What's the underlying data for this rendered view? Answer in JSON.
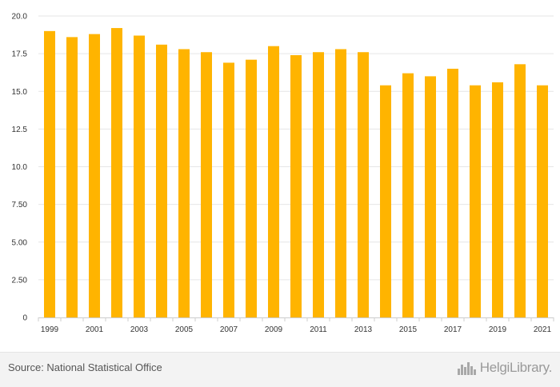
{
  "chart_data": {
    "type": "bar",
    "categories": [
      "1999",
      "2000",
      "2001",
      "2002",
      "2003",
      "2004",
      "2005",
      "2006",
      "2007",
      "2008",
      "2009",
      "2010",
      "2011",
      "2012",
      "2013",
      "2014",
      "2015",
      "2016",
      "2017",
      "2018",
      "2019",
      "2020",
      "2021"
    ],
    "values": [
      19.0,
      18.6,
      18.8,
      19.2,
      18.7,
      18.1,
      17.8,
      17.6,
      16.9,
      17.1,
      18.0,
      17.4,
      17.6,
      17.8,
      17.6,
      15.4,
      16.2,
      16.0,
      16.5,
      15.4,
      15.6,
      16.8,
      15.4
    ],
    "x_tick_labels": [
      "1999",
      "2001",
      "2003",
      "2005",
      "2007",
      "2009",
      "2011",
      "2013",
      "2015",
      "2017",
      "2019",
      "2021"
    ],
    "y_ticks": [
      "0",
      "2.50",
      "5.00",
      "7.50",
      "10.0",
      "12.5",
      "15.0",
      "17.5",
      "20.0"
    ],
    "ylim": [
      0,
      20
    ],
    "title": "",
    "xlabel": "",
    "ylabel": "",
    "grid": true,
    "legend": "none"
  },
  "colors": {
    "bar": "#ffb400",
    "grid": "#e6e6e6",
    "axis": "#cccccc",
    "tick_text": "#333333"
  },
  "footer": {
    "source": "Source: National Statistical Office",
    "brand": "HelgiLibrary.",
    "brand_icon": "city-skyline-icon"
  }
}
